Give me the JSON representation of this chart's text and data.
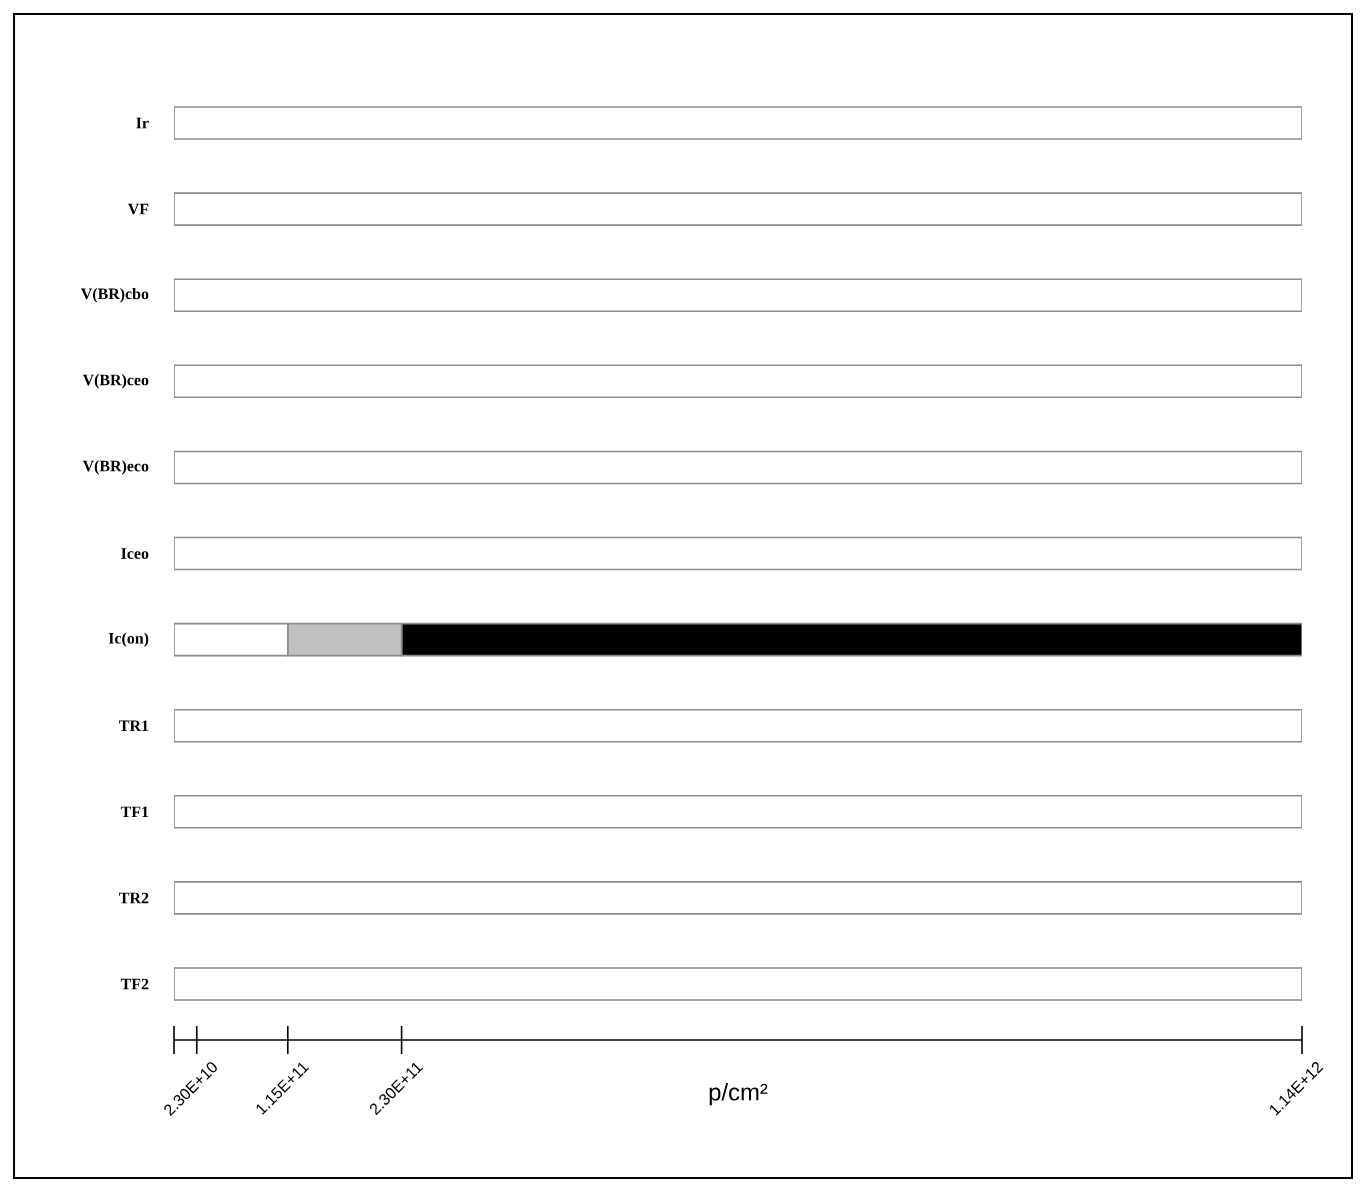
{
  "chart_data": {
    "type": "bar",
    "orientation": "horizontal",
    "stacked": true,
    "xlabel": "p/cm²",
    "categories": [
      "Ir",
      "VF",
      "V(BR)cbo",
      "V(BR)ceo",
      "V(BR)eco",
      "Iceo",
      "Ic(on)",
      "TR1",
      "TF1",
      "TR2",
      "TF2"
    ],
    "series": [
      {
        "color": "#ffffff",
        "values": [
          1140000000000,
          1140000000000,
          1140000000000,
          1140000000000,
          1140000000000,
          1140000000000,
          115000000000,
          1140000000000,
          1140000000000,
          1140000000000,
          1140000000000
        ]
      },
      {
        "color": "#c0c0c0",
        "values": [
          null,
          null,
          null,
          null,
          null,
          null,
          115000000000,
          null,
          null,
          null,
          null
        ]
      },
      {
        "color": "#000000",
        "values": [
          null,
          null,
          null,
          null,
          null,
          null,
          910000000000,
          null,
          null,
          null,
          null
        ]
      }
    ],
    "xlim": [
      0,
      1140000000000
    ],
    "xticks": [
      {
        "value": 0,
        "label": null
      },
      {
        "value": 23000000000,
        "label": "2.30E+10"
      },
      {
        "value": 115000000000,
        "label": "1.15E+11"
      },
      {
        "value": 230000000000,
        "label": "2.30E+11"
      },
      {
        "value": 1140000000000,
        "label": "1.14E+12"
      }
    ],
    "grid": false
  }
}
